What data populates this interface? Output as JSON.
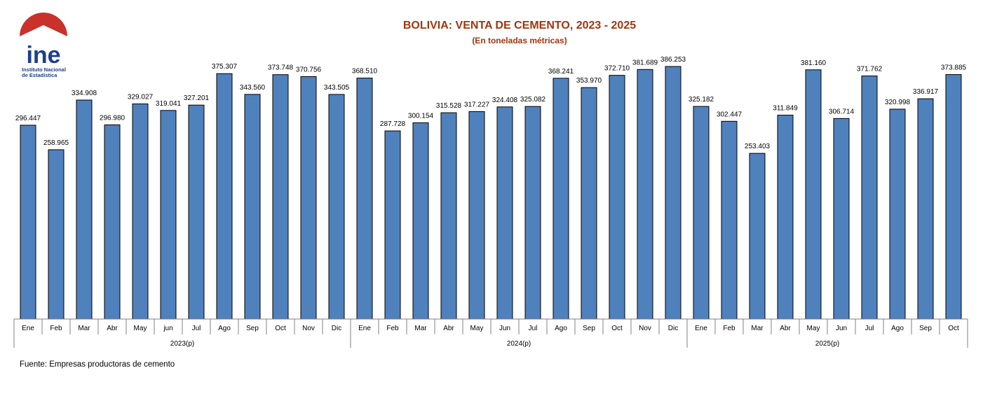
{
  "header": {
    "logo_text": "ine",
    "logo_subtitle_line1": "Instituto Nacional",
    "logo_subtitle_line2": "de Estadística",
    "title": "BOLIVIA: VENTA DE CEMENTO, 2023 - 2025",
    "subtitle": "(En toneladas métricas)"
  },
  "footer": {
    "source": "Fuente: Empresas productoras de cemento"
  },
  "colors": {
    "bar": "#4f81bd",
    "bar_stroke": "#000000",
    "title": "#a0360f",
    "logo_red": "#c8322a",
    "logo_blue": "#1f3e8a"
  },
  "chart_data": {
    "type": "bar",
    "title": "BOLIVIA: VENTA DE CEMENTO, 2023 - 2025",
    "subtitle": "(En toneladas métricas)",
    "xlabel": "",
    "ylabel": "",
    "grid": false,
    "legend": "none",
    "groups": [
      {
        "label": "2023(p)",
        "categories": [
          "Ene",
          "Feb",
          "Mar",
          "Abr",
          "May",
          "jun",
          "Jul",
          "Ago",
          "Sep",
          "Oct",
          "Nov",
          "Dic"
        ],
        "values": [
          296447,
          258965,
          334908,
          296980,
          329027,
          319041,
          327201,
          375307,
          343560,
          373748,
          370756,
          343505
        ],
        "labels": [
          "296.447",
          "258.965",
          "334.908",
          "296.980",
          "329.027",
          "319.041",
          "327.201",
          "375.307",
          "343.560",
          "373.748",
          "370.756",
          "343.505"
        ]
      },
      {
        "label": "2024(p)",
        "categories": [
          "Ene",
          "Feb",
          "Mar",
          "Abr",
          "May",
          "Jun",
          "Jul",
          "Ago",
          "Sep",
          "Oct",
          "Nov",
          "Dic"
        ],
        "values": [
          368510,
          287728,
          300154,
          315528,
          317227,
          324408,
          325082,
          368241,
          353970,
          372710,
          381689,
          386253
        ],
        "labels": [
          "368.510",
          "287.728",
          "300.154",
          "315.528",
          "317.227",
          "324.408",
          "325.082",
          "368.241",
          "353.970",
          "372.710",
          "381.689",
          "386.253"
        ]
      },
      {
        "label": "2025(p)",
        "categories": [
          "Ene",
          "Feb",
          "Mar",
          "Abr",
          "May",
          "Jun",
          "Jul",
          "Ago",
          "Sep",
          "Oct"
        ],
        "values": [
          325182,
          302447,
          253403,
          311849,
          381160,
          306714,
          371762,
          320998,
          336917,
          373885
        ],
        "labels": [
          "325.182",
          "302.447",
          "253.403",
          "311.849",
          "381.160",
          "306.714",
          "371.762",
          "320.998",
          "336.917",
          "373.885"
        ]
      }
    ]
  }
}
